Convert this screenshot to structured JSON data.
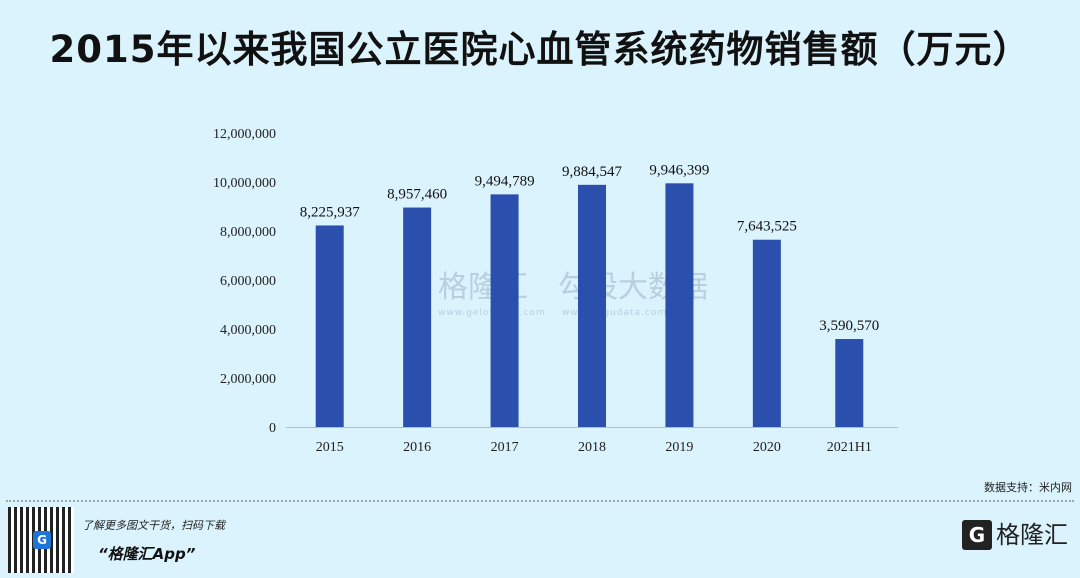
{
  "title": "2015年以来我国公立医院心血管系统药物销售额（万元）",
  "watermarks": {
    "left": "格隆汇",
    "left_sub": "www.gelonghui.com",
    "right": "勾股大数据",
    "right_sub": "www.gogudata.com"
  },
  "source": "数据支持：米内网",
  "footer": {
    "promo_line1": "了解更多图文干货，扫码下载",
    "promo_line2": "“格隆汇App”",
    "brand": "格隆汇",
    "qr_logo": "G"
  },
  "colors": {
    "bar": "#2b4fac",
    "background": "#dbf3fc"
  },
  "chart_data": {
    "type": "bar",
    "title": "2015年以来我国公立医院心血管系统药物销售额（万元）",
    "categories": [
      "2015",
      "2016",
      "2017",
      "2018",
      "2019",
      "2020",
      "2021H1"
    ],
    "values": [
      8225937,
      8957460,
      9494789,
      9884547,
      9946399,
      7643525,
      3590570
    ],
    "value_labels": [
      "8,225,937",
      "8,957,460",
      "9,494,789",
      "9,884,547",
      "9,946,399",
      "7,643,525",
      "3,590,570"
    ],
    "ylim": [
      0,
      12000000
    ],
    "yticks": [
      0,
      2000000,
      4000000,
      6000000,
      8000000,
      10000000,
      12000000
    ],
    "ytick_labels": [
      "0",
      "2,000,000",
      "4,000,000",
      "6,000,000",
      "8,000,000",
      "10,000,000",
      "12,000,000"
    ],
    "xlabel": "",
    "ylabel": "",
    "grid": false,
    "legend": "none"
  }
}
